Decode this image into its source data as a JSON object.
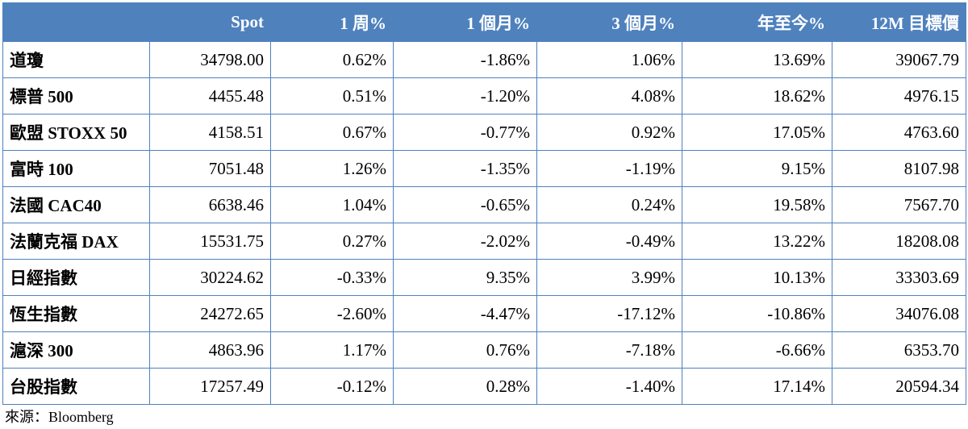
{
  "table": {
    "headers": [
      "",
      "Spot",
      "1 周%",
      "1 個月%",
      "3 個月%",
      "年至今%",
      "12M 目標價"
    ],
    "rows": [
      [
        "道瓊",
        "34798.00",
        "0.62%",
        "-1.86%",
        "1.06%",
        "13.69%",
        "39067.79"
      ],
      [
        "標普 500",
        "4455.48",
        "0.51%",
        "-1.20%",
        "4.08%",
        "18.62%",
        "4976.15"
      ],
      [
        "歐盟 STOXX 50",
        "4158.51",
        "0.67%",
        "-0.77%",
        "0.92%",
        "17.05%",
        "4763.60"
      ],
      [
        "富時 100",
        "7051.48",
        "1.26%",
        "-1.35%",
        "-1.19%",
        "9.15%",
        "8107.98"
      ],
      [
        "法國 CAC40",
        "6638.46",
        "1.04%",
        "-0.65%",
        "0.24%",
        "19.58%",
        "7567.70"
      ],
      [
        "法蘭克福 DAX",
        "15531.75",
        "0.27%",
        "-2.02%",
        "-0.49%",
        "13.22%",
        "18208.08"
      ],
      [
        "日經指數",
        "30224.62",
        "-0.33%",
        "9.35%",
        "3.99%",
        "10.13%",
        "33303.69"
      ],
      [
        "恆生指數",
        "24272.65",
        "-2.60%",
        "-4.47%",
        "-17.12%",
        "-10.86%",
        "34076.08"
      ],
      [
        "滬深 300",
        "4863.96",
        "1.17%",
        "0.76%",
        "-7.18%",
        "-6.66%",
        "6353.70"
      ],
      [
        "台股指數",
        "17257.49",
        "-0.12%",
        "0.28%",
        "-1.40%",
        "17.14%",
        "20594.34"
      ]
    ]
  },
  "source": "來源：Bloomberg",
  "colors": {
    "header_bg": "#4f81bd",
    "header_text": "#ffffff",
    "border": "#4f81bd"
  }
}
